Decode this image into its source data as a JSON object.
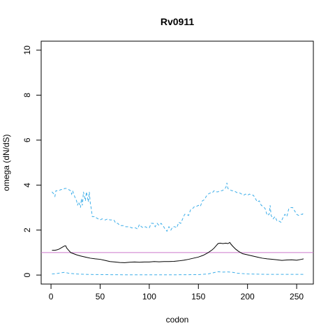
{
  "chart_data": {
    "type": "line",
    "title": "Rv0911",
    "xlabel": "codon",
    "ylabel": "omega (dN/dS)",
    "xlim": [
      -10,
      267
    ],
    "ylim": [
      -0.4,
      10.4
    ],
    "x_ticks": [
      0,
      50,
      100,
      150,
      200,
      250
    ],
    "y_ticks": [
      0,
      2,
      4,
      6,
      8,
      10
    ],
    "grid": false,
    "reference_line": {
      "y": 1,
      "color": "#cc79cc"
    },
    "series": [
      {
        "role": "upper-bound",
        "style": "dashed",
        "color": "#3daee9",
        "points": [
          [
            1,
            3.7
          ],
          [
            3,
            3.6
          ],
          [
            4,
            3.5
          ],
          [
            5,
            3.75
          ],
          [
            8,
            3.75
          ],
          [
            10,
            3.8
          ],
          [
            12,
            3.8
          ],
          [
            14,
            3.85
          ],
          [
            16,
            3.85
          ],
          [
            18,
            3.8
          ],
          [
            20,
            3.75
          ],
          [
            21,
            3.6
          ],
          [
            22,
            3.75
          ],
          [
            24,
            3.5
          ],
          [
            26,
            3.3
          ],
          [
            27,
            3.1
          ],
          [
            28,
            3.25
          ],
          [
            29,
            3.15
          ],
          [
            30,
            3.0
          ],
          [
            31,
            3.4
          ],
          [
            32,
            3.1
          ],
          [
            33,
            3.7
          ],
          [
            34,
            3.5
          ],
          [
            35,
            3.3
          ],
          [
            36,
            3.7
          ],
          [
            37,
            3.5
          ],
          [
            38,
            3.25
          ],
          [
            39,
            3.7
          ],
          [
            40,
            3.2
          ],
          [
            41,
            2.95
          ],
          [
            42,
            2.6
          ],
          [
            45,
            2.6
          ],
          [
            46,
            2.55
          ],
          [
            50,
            2.45
          ],
          [
            52,
            2.5
          ],
          [
            55,
            2.45
          ],
          [
            58,
            2.5
          ],
          [
            60,
            2.45
          ],
          [
            64,
            2.45
          ],
          [
            66,
            2.3
          ],
          [
            68,
            2.3
          ],
          [
            70,
            2.2
          ],
          [
            74,
            2.2
          ],
          [
            76,
            2.15
          ],
          [
            80,
            2.15
          ],
          [
            82,
            2.1
          ],
          [
            86,
            2.1
          ],
          [
            88,
            2.05
          ],
          [
            90,
            2.25
          ],
          [
            92,
            2.15
          ],
          [
            94,
            2.1
          ],
          [
            96,
            2.15
          ],
          [
            98,
            2.1
          ],
          [
            100,
            2.1
          ],
          [
            102,
            2.3
          ],
          [
            104,
            2.3
          ],
          [
            106,
            2.15
          ],
          [
            108,
            2.3
          ],
          [
            110,
            2.2
          ],
          [
            112,
            2.3
          ],
          [
            114,
            2.2
          ],
          [
            116,
            2.05
          ],
          [
            118,
            1.95
          ],
          [
            120,
            2.15
          ],
          [
            122,
            2.0
          ],
          [
            124,
            2.15
          ],
          [
            126,
            2.15
          ],
          [
            128,
            2.1
          ],
          [
            130,
            2.35
          ],
          [
            132,
            2.3
          ],
          [
            134,
            2.5
          ],
          [
            136,
            2.7
          ],
          [
            138,
            2.7
          ],
          [
            140,
            2.65
          ],
          [
            142,
            2.9
          ],
          [
            144,
            2.95
          ],
          [
            146,
            3.05
          ],
          [
            148,
            3.05
          ],
          [
            150,
            3.1
          ],
          [
            152,
            3.05
          ],
          [
            154,
            3.3
          ],
          [
            156,
            3.35
          ],
          [
            158,
            3.5
          ],
          [
            160,
            3.6
          ],
          [
            162,
            3.65
          ],
          [
            164,
            3.65
          ],
          [
            166,
            3.75
          ],
          [
            168,
            3.7
          ],
          [
            170,
            3.7
          ],
          [
            172,
            3.75
          ],
          [
            174,
            3.75
          ],
          [
            176,
            3.8
          ],
          [
            178,
            3.9
          ],
          [
            179,
            4.1
          ],
          [
            180,
            3.85
          ],
          [
            182,
            3.8
          ],
          [
            184,
            3.75
          ],
          [
            186,
            3.75
          ],
          [
            188,
            3.7
          ],
          [
            190,
            3.65
          ],
          [
            192,
            3.65
          ],
          [
            194,
            3.6
          ],
          [
            196,
            3.55
          ],
          [
            198,
            3.6
          ],
          [
            200,
            3.55
          ],
          [
            202,
            3.6
          ],
          [
            204,
            3.55
          ],
          [
            206,
            3.55
          ],
          [
            208,
            3.4
          ],
          [
            210,
            3.25
          ],
          [
            212,
            3.3
          ],
          [
            214,
            3.1
          ],
          [
            216,
            3.05
          ],
          [
            218,
            2.95
          ],
          [
            220,
            2.65
          ],
          [
            222,
            2.7
          ],
          [
            223,
            3.1
          ],
          [
            224,
            2.65
          ],
          [
            226,
            2.5
          ],
          [
            228,
            2.6
          ],
          [
            230,
            2.4
          ],
          [
            232,
            2.4
          ],
          [
            234,
            2.35
          ],
          [
            236,
            2.55
          ],
          [
            238,
            2.7
          ],
          [
            240,
            2.6
          ],
          [
            242,
            2.95
          ],
          [
            244,
            3.0
          ],
          [
            246,
            3.0
          ],
          [
            248,
            2.85
          ],
          [
            250,
            2.7
          ],
          [
            252,
            2.65
          ],
          [
            254,
            2.7
          ],
          [
            256,
            2.7
          ],
          [
            257,
            2.8
          ]
        ]
      },
      {
        "role": "estimate",
        "style": "solid",
        "color": "#000000",
        "points": [
          [
            1,
            1.1
          ],
          [
            4,
            1.1
          ],
          [
            6,
            1.12
          ],
          [
            8,
            1.15
          ],
          [
            10,
            1.2
          ],
          [
            12,
            1.25
          ],
          [
            14,
            1.3
          ],
          [
            15,
            1.3
          ],
          [
            16,
            1.2
          ],
          [
            18,
            1.1
          ],
          [
            20,
            1.0
          ],
          [
            23,
            0.95
          ],
          [
            26,
            0.9
          ],
          [
            30,
            0.85
          ],
          [
            35,
            0.8
          ],
          [
            40,
            0.75
          ],
          [
            45,
            0.72
          ],
          [
            50,
            0.7
          ],
          [
            55,
            0.65
          ],
          [
            60,
            0.6
          ],
          [
            65,
            0.58
          ],
          [
            70,
            0.56
          ],
          [
            75,
            0.55
          ],
          [
            80,
            0.57
          ],
          [
            85,
            0.58
          ],
          [
            90,
            0.57
          ],
          [
            95,
            0.58
          ],
          [
            100,
            0.58
          ],
          [
            105,
            0.6
          ],
          [
            110,
            0.59
          ],
          [
            115,
            0.6
          ],
          [
            120,
            0.6
          ],
          [
            125,
            0.61
          ],
          [
            130,
            0.63
          ],
          [
            135,
            0.66
          ],
          [
            140,
            0.7
          ],
          [
            145,
            0.75
          ],
          [
            150,
            0.8
          ],
          [
            155,
            0.88
          ],
          [
            160,
            1.0
          ],
          [
            164,
            1.12
          ],
          [
            166,
            1.2
          ],
          [
            168,
            1.3
          ],
          [
            170,
            1.4
          ],
          [
            172,
            1.42
          ],
          [
            175,
            1.4
          ],
          [
            178,
            1.42
          ],
          [
            180,
            1.4
          ],
          [
            182,
            1.45
          ],
          [
            183,
            1.38
          ],
          [
            185,
            1.28
          ],
          [
            188,
            1.15
          ],
          [
            191,
            1.05
          ],
          [
            195,
            0.95
          ],
          [
            200,
            0.9
          ],
          [
            205,
            0.85
          ],
          [
            210,
            0.8
          ],
          [
            215,
            0.75
          ],
          [
            220,
            0.72
          ],
          [
            225,
            0.7
          ],
          [
            230,
            0.68
          ],
          [
            235,
            0.65
          ],
          [
            240,
            0.67
          ],
          [
            245,
            0.68
          ],
          [
            250,
            0.66
          ],
          [
            255,
            0.7
          ],
          [
            257,
            0.72
          ]
        ]
      },
      {
        "role": "lower-bound",
        "style": "dashed",
        "color": "#3daee9",
        "points": [
          [
            1,
            0.05
          ],
          [
            5,
            0.06
          ],
          [
            10,
            0.1
          ],
          [
            14,
            0.12
          ],
          [
            18,
            0.08
          ],
          [
            25,
            0.05
          ],
          [
            35,
            0.03
          ],
          [
            50,
            0.02
          ],
          [
            80,
            0.01
          ],
          [
            120,
            0.01
          ],
          [
            150,
            0.02
          ],
          [
            160,
            0.05
          ],
          [
            165,
            0.1
          ],
          [
            170,
            0.15
          ],
          [
            175,
            0.13
          ],
          [
            180,
            0.14
          ],
          [
            185,
            0.12
          ],
          [
            190,
            0.08
          ],
          [
            200,
            0.05
          ],
          [
            220,
            0.03
          ],
          [
            257,
            0.03
          ]
        ]
      }
    ]
  }
}
